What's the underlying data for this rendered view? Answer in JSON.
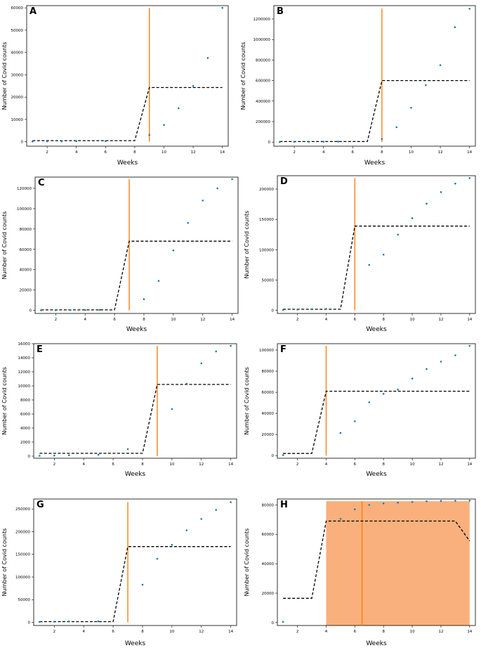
{
  "chart_data": [
    {
      "letter": "A",
      "type": "scatter",
      "xlabel": "Weeks",
      "ylabel": "Number of Covid counts",
      "xlim": [
        0.6,
        14.4
      ],
      "ylim": [
        -2000,
        61000
      ],
      "xticks": [
        2,
        4,
        6,
        8,
        10,
        12,
        14
      ],
      "yticks": [
        0,
        10000,
        20000,
        30000,
        40000,
        50000,
        60000
      ],
      "ytick_labels": [
        "0",
        "10000",
        "20000",
        "30000",
        "40000",
        "50000",
        "60000"
      ],
      "points": [
        [
          1,
          100
        ],
        [
          2,
          150
        ],
        [
          3,
          200
        ],
        [
          4,
          250
        ],
        [
          6,
          300
        ],
        [
          9,
          3000
        ],
        [
          10,
          7500
        ],
        [
          11,
          15000
        ],
        [
          12,
          25000
        ],
        [
          13,
          37500
        ],
        [
          14,
          60000
        ]
      ],
      "fit": [
        [
          1,
          500
        ],
        [
          8,
          500
        ],
        [
          9,
          24300
        ],
        [
          14,
          24300
        ]
      ],
      "vline": {
        "x": 9,
        "y0": 0,
        "y1": 60000
      }
    },
    {
      "letter": "B",
      "type": "scatter",
      "xlabel": "Weeks",
      "ylabel": "Number of Covid counts",
      "xlim": [
        0.6,
        14.4
      ],
      "ylim": [
        -40000,
        1330000
      ],
      "xticks": [
        2,
        4,
        6,
        8,
        10,
        12,
        14
      ],
      "yticks": [
        0,
        200000,
        400000,
        600000,
        800000,
        1000000,
        1200000
      ],
      "ytick_labels": [
        "0",
        "200000",
        "400000",
        "600000",
        "800000",
        "1000000",
        "1200000"
      ],
      "points": [
        [
          1,
          1000
        ],
        [
          2,
          2000
        ],
        [
          3,
          3000
        ],
        [
          4,
          4000
        ],
        [
          5,
          5000
        ],
        [
          8,
          30000
        ],
        [
          9,
          145000
        ],
        [
          10,
          335000
        ],
        [
          11,
          555000
        ],
        [
          12,
          750000
        ],
        [
          13,
          1120000
        ],
        [
          14,
          1300000
        ]
      ],
      "fit": [
        [
          1,
          5000
        ],
        [
          7,
          5000
        ],
        [
          8,
          600000
        ],
        [
          14,
          600000
        ]
      ],
      "vline": {
        "x": 8,
        "y0": 0,
        "y1": 1300000
      }
    },
    {
      "letter": "C",
      "type": "scatter",
      "xlabel": "Weeks",
      "ylabel": "Number of Covid counts",
      "xlim": [
        0.6,
        14.4
      ],
      "ylim": [
        -3000,
        131000
      ],
      "xticks": [
        2,
        4,
        6,
        8,
        10,
        12,
        14
      ],
      "yticks": [
        0,
        20000,
        40000,
        60000,
        80000,
        100000,
        120000
      ],
      "ytick_labels": [
        "0",
        "20000",
        "40000",
        "60000",
        "80000",
        "100000",
        "120000"
      ],
      "points": [
        [
          1,
          100
        ],
        [
          2,
          200
        ],
        [
          3,
          300
        ],
        [
          4,
          400
        ],
        [
          5,
          500
        ],
        [
          8,
          11000
        ],
        [
          9,
          29000
        ],
        [
          10,
          59000
        ],
        [
          11,
          86000
        ],
        [
          12,
          108000
        ],
        [
          13,
          120000
        ],
        [
          14,
          129000
        ]
      ],
      "fit": [
        [
          1,
          500
        ],
        [
          6,
          500
        ],
        [
          7,
          68000
        ],
        [
          14,
          68000
        ]
      ],
      "vline": {
        "x": 7,
        "y0": 0,
        "y1": 129000
      }
    },
    {
      "letter": "D",
      "type": "scatter",
      "xlabel": "Weeks",
      "ylabel": "Number of Covid counts",
      "xlim": [
        0.6,
        14.4
      ],
      "ylim": [
        -5000,
        222000
      ],
      "xticks": [
        2,
        4,
        6,
        8,
        10,
        12,
        14
      ],
      "yticks": [
        0,
        50000,
        100000,
        150000,
        200000
      ],
      "ytick_labels": [
        "0",
        "50000",
        "100000",
        "150000",
        "200000"
      ],
      "points": [
        [
          1,
          1000
        ],
        [
          2,
          1500
        ],
        [
          3,
          2000
        ],
        [
          4,
          2500
        ],
        [
          7,
          75000
        ],
        [
          8,
          92000
        ],
        [
          9,
          125000
        ],
        [
          10,
          152000
        ],
        [
          11,
          176000
        ],
        [
          12,
          195000
        ],
        [
          13,
          209000
        ],
        [
          14,
          218000
        ]
      ],
      "fit": [
        [
          1,
          2000
        ],
        [
          5,
          2000
        ],
        [
          6,
          139000
        ],
        [
          14,
          139000
        ]
      ],
      "vline": {
        "x": 6,
        "y0": 0,
        "y1": 218000
      }
    },
    {
      "letter": "E",
      "type": "scatter",
      "xlabel": "Weeks",
      "ylabel": "Number of Covid counts",
      "xlim": [
        0.6,
        14.4
      ],
      "ylim": [
        -300,
        16000
      ],
      "xticks": [
        2,
        4,
        6,
        8,
        10,
        12,
        14
      ],
      "yticks": [
        0,
        2000,
        4000,
        6000,
        8000,
        10000,
        12000,
        14000,
        16000
      ],
      "ytick_labels": [
        "0",
        "2000",
        "4000",
        "6000",
        "8000",
        "10000",
        "12000",
        "14000",
        "16000"
      ],
      "points": [
        [
          1,
          50
        ],
        [
          2,
          80
        ],
        [
          3,
          120
        ],
        [
          5,
          200
        ],
        [
          7,
          1000
        ],
        [
          10,
          6700
        ],
        [
          11,
          10300
        ],
        [
          12,
          13200
        ],
        [
          13,
          14900
        ],
        [
          14,
          15700
        ]
      ],
      "fit": [
        [
          1,
          400
        ],
        [
          8,
          400
        ],
        [
          9,
          10200
        ],
        [
          14,
          10200
        ]
      ],
      "vline": {
        "x": 9,
        "y0": 0,
        "y1": 15700
      }
    },
    {
      "letter": "F",
      "type": "scatter",
      "xlabel": "Weeks",
      "ylabel": "Number of Covid counts",
      "xlim": [
        0.6,
        14.4
      ],
      "ylim": [
        -2500,
        106000
      ],
      "xticks": [
        2,
        4,
        6,
        8,
        10,
        12,
        14
      ],
      "yticks": [
        0,
        20000,
        40000,
        60000,
        80000,
        100000
      ],
      "ytick_labels": [
        "0",
        "20000",
        "40000",
        "60000",
        "80000",
        "100000"
      ],
      "points": [
        [
          1,
          500
        ],
        [
          5,
          21500
        ],
        [
          6,
          32500
        ],
        [
          7,
          50500
        ],
        [
          8,
          58500
        ],
        [
          9,
          62500
        ],
        [
          10,
          73000
        ],
        [
          11,
          82000
        ],
        [
          12,
          89000
        ],
        [
          13,
          95000
        ],
        [
          14,
          104000
        ]
      ],
      "fit": [
        [
          1,
          2000
        ],
        [
          3,
          2000
        ],
        [
          4,
          61000
        ],
        [
          14,
          61000
        ]
      ],
      "vline": {
        "x": 4,
        "y0": 0,
        "y1": 104000
      }
    },
    {
      "letter": "G",
      "type": "scatter",
      "xlabel": "Weeks",
      "ylabel": "Number of Covid counts",
      "xlim": [
        0.6,
        14.4
      ],
      "ylim": [
        -7000,
        272000
      ],
      "xticks": [
        2,
        4,
        6,
        8,
        10,
        12,
        14
      ],
      "yticks": [
        0,
        50000,
        100000,
        150000,
        200000,
        250000
      ],
      "ytick_labels": [
        "0",
        "50000",
        "100000",
        "150000",
        "200000",
        "250000"
      ],
      "points": [
        [
          1,
          1000
        ],
        [
          2,
          1500
        ],
        [
          3,
          2000
        ],
        [
          5,
          2500
        ],
        [
          8,
          83000
        ],
        [
          9,
          140000
        ],
        [
          10,
          171000
        ],
        [
          11,
          203000
        ],
        [
          12,
          228000
        ],
        [
          13,
          248000
        ],
        [
          14,
          265000
        ]
      ],
      "fit": [
        [
          1,
          1500
        ],
        [
          6,
          1500
        ],
        [
          7,
          167000
        ],
        [
          14,
          167000
        ]
      ],
      "vline": {
        "x": 7,
        "y0": 0,
        "y1": 265000
      }
    },
    {
      "letter": "H",
      "type": "scatter",
      "xlabel": "Weeks",
      "ylabel": "Number of Covid counts",
      "xlim": [
        0.6,
        14.4
      ],
      "ylim": [
        -2000,
        84000
      ],
      "xticks": [
        2,
        4,
        6,
        8,
        10,
        12,
        14
      ],
      "yticks": [
        0,
        20000,
        40000,
        60000,
        80000
      ],
      "ytick_labels": [
        "0",
        "20000",
        "40000",
        "60000",
        "80000"
      ],
      "points": [
        [
          1,
          500
        ],
        [
          5,
          70500
        ],
        [
          6,
          77000
        ],
        [
          7,
          80000
        ],
        [
          8,
          81000
        ],
        [
          9,
          81500
        ],
        [
          10,
          82000
        ],
        [
          11,
          82500
        ],
        [
          12,
          82700
        ],
        [
          13,
          82800
        ],
        [
          14,
          82900
        ]
      ],
      "fit": [
        [
          1,
          16500
        ],
        [
          3,
          16500
        ],
        [
          4,
          69000
        ],
        [
          13,
          69000
        ],
        [
          14,
          55500
        ]
      ],
      "vline": {
        "x": 6.5,
        "y0": -2000,
        "y1": 82500
      },
      "span": {
        "x0": 4,
        "x1": 14,
        "y0": -2000,
        "y1": 82500
      }
    }
  ],
  "colors": {
    "points": "#1f77b4",
    "fit": "#000000",
    "vline": "#ff7f0e",
    "span": "#f9b07c"
  }
}
